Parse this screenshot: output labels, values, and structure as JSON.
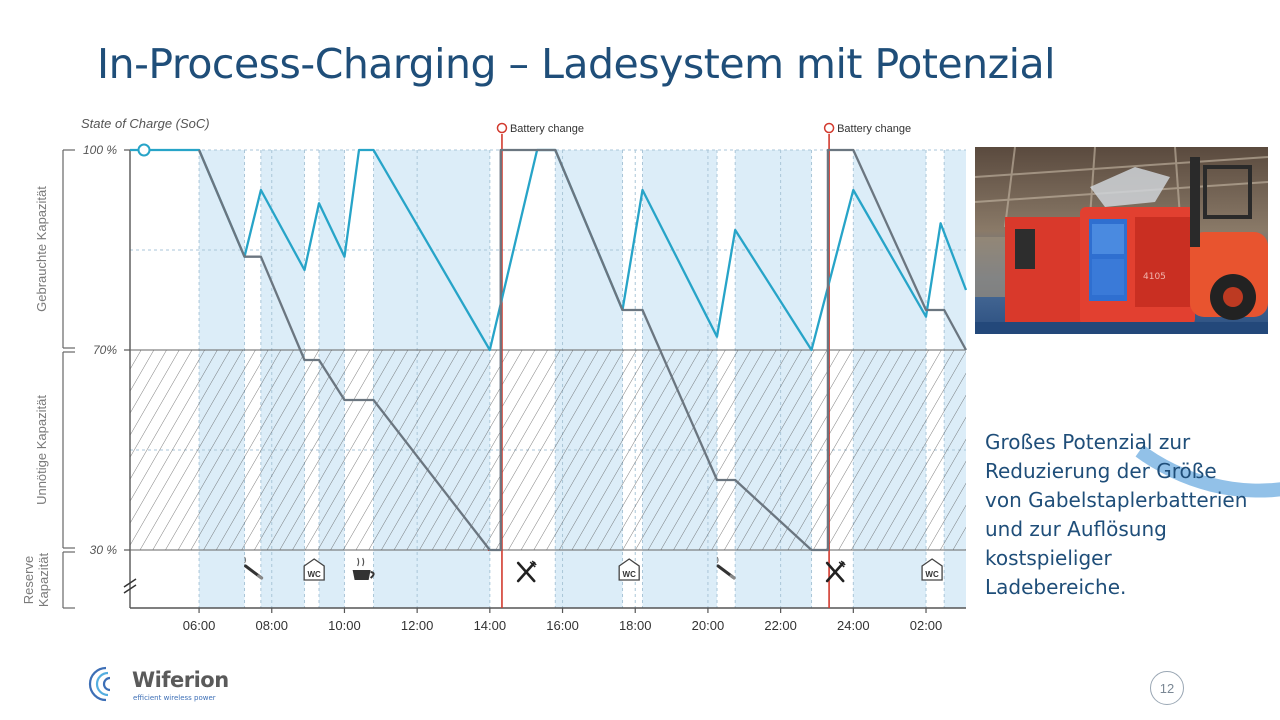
{
  "slide": {
    "title": "In-Process-Charging – Ladesystem mit Potenzial",
    "caption": "Großes Potenzial zur Reduzierung der Größe von Gabelstaplerbatterien und zur Auflösung kostspieliger Ladebereiche.",
    "page_number": "12"
  },
  "logo": {
    "name": "Wiferion",
    "tagline": "efficient wireless power"
  },
  "photo": {
    "subject": "red forklift with wireless charging unit",
    "unit_label": "4105"
  },
  "colors": {
    "title": "#1f4e79",
    "charging_band": "#dcedf8",
    "ipc_line": "#27a4c8",
    "conventional_line": "#6b7680",
    "battery_change": "#d23a2e",
    "hatch": "#555555"
  },
  "chart_data": {
    "type": "line",
    "ylabel": "State of Charge (SoC)",
    "y_ticks": [
      {
        "value": 100,
        "label": "100 %"
      },
      {
        "value": 70,
        "label": "70%"
      },
      {
        "value": 30,
        "label": "30 %"
      }
    ],
    "ylim": [
      15,
      100
    ],
    "x_tick_labels": [
      "06:00",
      "08:00",
      "10:00",
      "12:00",
      "14:00",
      "16:00",
      "18:00",
      "20:00",
      "22:00",
      "24:00",
      "02:00"
    ],
    "xlim_hours": [
      4.1,
      27.1
    ],
    "zones": [
      {
        "label": "Gebrauchte Kapazität",
        "from": 70,
        "to": 100
      },
      {
        "label": "Unnötige Kapazität",
        "from": 30,
        "to": 70
      },
      {
        "label": "Reserve Kapazität",
        "from": 15,
        "to": 30
      }
    ],
    "charging_periods_hours": [
      [
        6.0,
        7.25
      ],
      [
        7.7,
        8.9
      ],
      [
        9.3,
        10.0
      ],
      [
        10.8,
        14.0
      ],
      [
        15.8,
        17.65
      ],
      [
        18.2,
        20.25
      ],
      [
        20.75,
        22.85
      ],
      [
        24.0,
        26.0
      ],
      [
        26.5,
        27.1
      ]
    ],
    "events": [
      {
        "time": "07:30",
        "type": "cigarette"
      },
      {
        "time": "09:10",
        "type": "wc"
      },
      {
        "time": "10:30",
        "type": "coffee"
      },
      {
        "time": "15:00",
        "type": "meal"
      },
      {
        "time": "17:50",
        "type": "wc"
      },
      {
        "time": "20:30",
        "type": "cigarette"
      },
      {
        "time": "23:30",
        "type": "meal"
      },
      {
        "time": "02:10",
        "type": "wc"
      }
    ],
    "annotations": [
      {
        "time": "14:20",
        "label": "Battery change"
      },
      {
        "time": "23:20",
        "label": "Battery change"
      }
    ],
    "series": [
      {
        "style": "ipc",
        "points": [
          [
            4.1,
            100
          ],
          [
            6.0,
            100
          ],
          [
            7.25,
            84
          ],
          [
            7.7,
            94
          ],
          [
            8.9,
            82
          ],
          [
            9.3,
            92
          ],
          [
            10.0,
            84
          ],
          [
            10.4,
            100
          ],
          [
            10.8,
            100
          ],
          [
            14.0,
            70
          ],
          [
            15.3,
            100
          ],
          [
            15.8,
            100
          ],
          [
            17.65,
            76
          ],
          [
            18.2,
            94
          ],
          [
            20.25,
            72
          ],
          [
            20.75,
            88
          ],
          [
            22.85,
            70
          ],
          [
            24.0,
            94
          ],
          [
            26.0,
            75
          ],
          [
            26.4,
            89
          ],
          [
            27.1,
            79
          ]
        ]
      },
      {
        "style": "conventional",
        "points": [
          [
            6.0,
            100
          ],
          [
            7.25,
            84
          ],
          [
            7.7,
            84
          ],
          [
            8.9,
            68
          ],
          [
            9.3,
            68
          ],
          [
            10.0,
            60
          ],
          [
            10.8,
            60
          ],
          [
            14.0,
            30
          ],
          [
            14.3,
            30
          ],
          [
            14.3,
            100
          ],
          [
            15.8,
            100
          ],
          [
            17.65,
            76
          ],
          [
            18.2,
            76
          ],
          [
            20.25,
            44
          ],
          [
            20.75,
            44
          ],
          [
            22.85,
            30
          ],
          [
            23.3,
            30
          ],
          [
            23.3,
            100
          ],
          [
            24.0,
            100
          ],
          [
            26.0,
            76
          ],
          [
            26.5,
            76
          ],
          [
            27.1,
            70
          ]
        ]
      }
    ]
  }
}
